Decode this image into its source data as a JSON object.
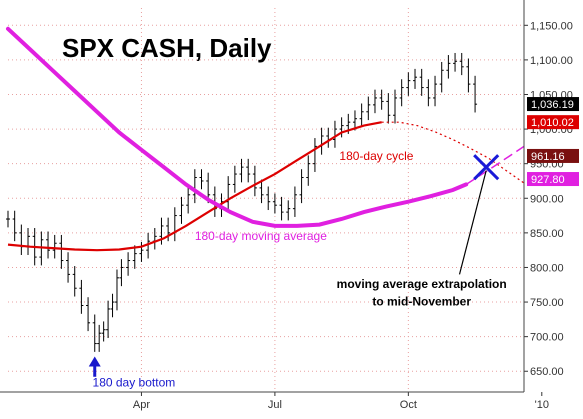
{
  "chart_data": {
    "type": "line",
    "title": "SPX CASH, Daily",
    "xlabel": "",
    "ylabel": "",
    "x_range": [
      0,
      11.6
    ],
    "x_ticks": [
      {
        "label": "Apr",
        "x": 3.0
      },
      {
        "label": "Jul",
        "x": 6.0
      },
      {
        "label": "Oct",
        "x": 9.0
      },
      {
        "label": "'10",
        "x": 12.0
      }
    ],
    "ylim": [
      620,
      1175
    ],
    "y_ticks": [
      650,
      700,
      750,
      800,
      850,
      900,
      950,
      1000,
      1050,
      1100,
      1150
    ],
    "y_tick_labels": [
      "650.00",
      "700.00",
      "750.00",
      "800.00",
      "850.00",
      "900.00",
      "950.00",
      "1,000.00",
      "1,050.00",
      "1,100.00",
      "1,150.00"
    ],
    "grid": false,
    "colors": {
      "price": "#000000",
      "cycle": "#dd0000",
      "moving_average": "#e020e0",
      "bottom_arrow": "#1818cc",
      "cross": "#1a1ad8",
      "grid_line": "#e8a0a0",
      "badge_price": "#000000",
      "badge_cycle_red": "#dd0000",
      "badge_cycle_dark": "#7a1010",
      "badge_ma": "#e020e0"
    },
    "series": [
      {
        "key": "price",
        "style": "ohlc-bars",
        "points": [
          [
            0.0,
            870
          ],
          [
            0.15,
            850
          ],
          [
            0.3,
            830
          ],
          [
            0.45,
            845
          ],
          [
            0.6,
            815
          ],
          [
            0.75,
            840
          ],
          [
            0.9,
            825
          ],
          [
            1.05,
            835
          ],
          [
            1.2,
            810
          ],
          [
            1.35,
            790
          ],
          [
            1.5,
            770
          ],
          [
            1.65,
            745
          ],
          [
            1.8,
            720
          ],
          [
            1.95,
            690
          ],
          [
            2.05,
            705
          ],
          [
            2.15,
            710
          ],
          [
            2.25,
            740
          ],
          [
            2.35,
            750
          ],
          [
            2.45,
            785
          ],
          [
            2.55,
            800
          ],
          [
            2.7,
            810
          ],
          [
            2.85,
            820
          ],
          [
            3.0,
            825
          ],
          [
            3.15,
            838
          ],
          [
            3.3,
            845
          ],
          [
            3.45,
            860
          ],
          [
            3.6,
            850
          ],
          [
            3.75,
            875
          ],
          [
            3.9,
            890
          ],
          [
            4.05,
            905
          ],
          [
            4.2,
            930
          ],
          [
            4.35,
            925
          ],
          [
            4.5,
            905
          ],
          [
            4.65,
            885
          ],
          [
            4.8,
            895
          ],
          [
            4.95,
            920
          ],
          [
            5.1,
            935
          ],
          [
            5.25,
            945
          ],
          [
            5.4,
            935
          ],
          [
            5.55,
            915
          ],
          [
            5.7,
            905
          ],
          [
            5.85,
            895
          ],
          [
            6.0,
            890
          ],
          [
            6.15,
            880
          ],
          [
            6.3,
            885
          ],
          [
            6.45,
            905
          ],
          [
            6.6,
            930
          ],
          [
            6.75,
            950
          ],
          [
            6.9,
            975
          ],
          [
            7.05,
            990
          ],
          [
            7.2,
            985
          ],
          [
            7.35,
            1000
          ],
          [
            7.5,
            1005
          ],
          [
            7.65,
            1010
          ],
          [
            7.8,
            1015
          ],
          [
            7.95,
            1025
          ],
          [
            8.1,
            1035
          ],
          [
            8.25,
            1045
          ],
          [
            8.4,
            1040
          ],
          [
            8.55,
            1020
          ],
          [
            8.7,
            1045
          ],
          [
            8.85,
            1060
          ],
          [
            9.0,
            1070
          ],
          [
            9.15,
            1075
          ],
          [
            9.3,
            1060
          ],
          [
            9.45,
            1045
          ],
          [
            9.6,
            1065
          ],
          [
            9.75,
            1085
          ],
          [
            9.9,
            1095
          ],
          [
            10.05,
            1098
          ],
          [
            10.2,
            1090
          ],
          [
            10.35,
            1065
          ],
          [
            10.5,
            1036
          ]
        ]
      },
      {
        "key": "cycle",
        "style": "solid",
        "points": [
          [
            0.0,
            833
          ],
          [
            0.5,
            830
          ],
          [
            1.0,
            828
          ],
          [
            1.5,
            826
          ],
          [
            2.0,
            825
          ],
          [
            2.5,
            826
          ],
          [
            3.0,
            830
          ],
          [
            3.5,
            842
          ],
          [
            4.0,
            860
          ],
          [
            4.5,
            880
          ],
          [
            5.0,
            900
          ],
          [
            5.5,
            918
          ],
          [
            6.0,
            935
          ],
          [
            6.5,
            955
          ],
          [
            7.0,
            975
          ],
          [
            7.5,
            995
          ],
          [
            8.0,
            1005
          ],
          [
            8.4,
            1010
          ]
        ]
      },
      {
        "key": "cycle_projection",
        "style": "dotted",
        "points": [
          [
            8.4,
            1010
          ],
          [
            8.8,
            1010
          ],
          [
            9.2,
            1005
          ],
          [
            9.6,
            996
          ],
          [
            10.0,
            985
          ],
          [
            10.4,
            972
          ],
          [
            10.8,
            958
          ],
          [
            11.2,
            940
          ],
          [
            11.6,
            922
          ]
        ]
      },
      {
        "key": "moving_average",
        "style": "thick",
        "points": [
          [
            0.0,
            1145
          ],
          [
            0.5,
            1115
          ],
          [
            1.0,
            1085
          ],
          [
            1.5,
            1055
          ],
          [
            2.0,
            1025
          ],
          [
            2.5,
            995
          ],
          [
            3.0,
            970
          ],
          [
            3.5,
            945
          ],
          [
            4.0,
            920
          ],
          [
            4.5,
            898
          ],
          [
            5.0,
            880
          ],
          [
            5.5,
            866
          ],
          [
            6.0,
            860
          ],
          [
            6.5,
            860
          ],
          [
            7.0,
            862
          ],
          [
            7.5,
            870
          ],
          [
            8.0,
            880
          ],
          [
            8.5,
            888
          ],
          [
            9.0,
            895
          ],
          [
            9.5,
            903
          ],
          [
            10.0,
            912
          ],
          [
            10.3,
            920
          ]
        ]
      },
      {
        "key": "moving_average_extrapolation",
        "style": "dashed",
        "points": [
          [
            10.3,
            920
          ],
          [
            10.9,
            945
          ],
          [
            11.6,
            975
          ]
        ]
      }
    ],
    "price_badges": [
      {
        "label": "1,036.19",
        "value": 1036.19,
        "color_key": "badge_price"
      },
      {
        "label": "1,010.02",
        "value": 1010.02,
        "color_key": "badge_cycle_red"
      },
      {
        "label": "961.16",
        "value": 961.16,
        "color_key": "badge_cycle_dark"
      },
      {
        "label": "927.80",
        "value": 927.8,
        "color_key": "badge_ma"
      }
    ],
    "annotations": [
      {
        "key": "cycle_label",
        "text": "180-day cycle",
        "x": 7.45,
        "y": 955,
        "color_key": "cycle"
      },
      {
        "key": "ma_label",
        "text": "180-day moving average",
        "x": 4.2,
        "y": 840,
        "color_key": "moving_average"
      },
      {
        "key": "extrapolation_line1",
        "text": "moving average extrapolation",
        "x": 9.3,
        "y": 770,
        "color_key": "price",
        "bold": true
      },
      {
        "key": "extrapolation_line2",
        "text": "to mid-November",
        "x": 9.3,
        "y": 745,
        "color_key": "price",
        "bold": true
      },
      {
        "key": "bottom_label",
        "text": "180 day bottom",
        "x": 1.9,
        "y": 628,
        "color_key": "bottom_arrow"
      }
    ],
    "bottom_arrow": {
      "x": 1.95,
      "y_from": 642,
      "y_to": 667
    },
    "cross": {
      "x": 10.75,
      "y": 945
    },
    "callout_line": {
      "from": [
        10.15,
        790
      ],
      "to": [
        10.75,
        940
      ]
    }
  }
}
